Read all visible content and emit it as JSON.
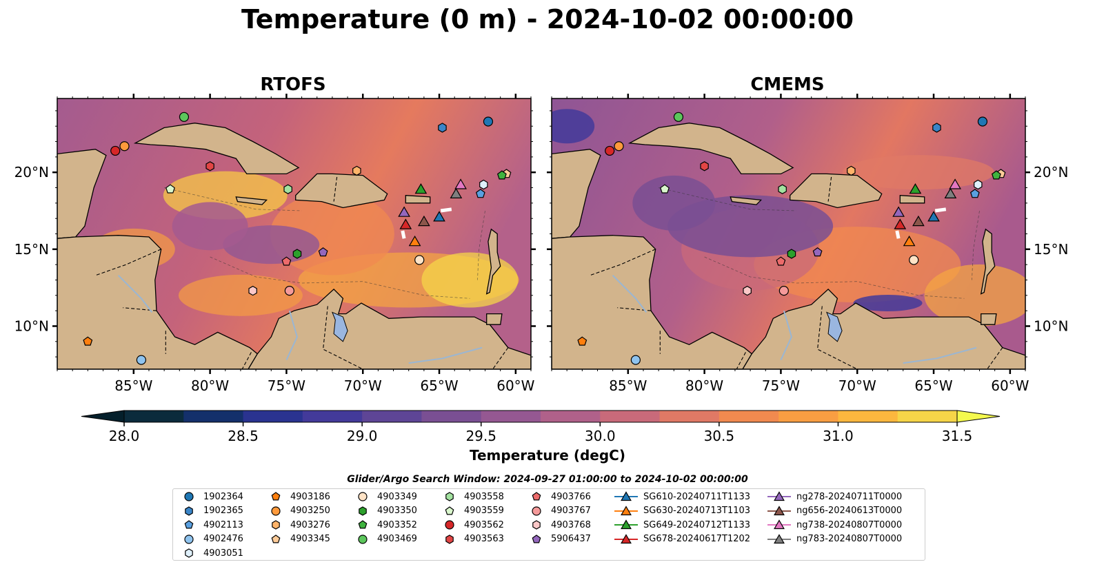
{
  "title": "Temperature (0 m) - 2024-10-02 00:00:00",
  "panels": [
    {
      "title": "RTOFS"
    },
    {
      "title": "CMEMS"
    }
  ],
  "lon_ticks": [
    "85°W",
    "80°W",
    "75°W",
    "70°W",
    "65°W",
    "60°W"
  ],
  "lat_ticks": [
    "20°N",
    "15°N",
    "10°N"
  ],
  "colorbar": {
    "label": "Temperature (degC)",
    "ticks": [
      "28.0",
      "28.5",
      "29.0",
      "29.5",
      "30.0",
      "30.5",
      "31.0",
      "31.5"
    ],
    "colors": [
      "#0b2b3c",
      "#14306b",
      "#2a3390",
      "#433a9a",
      "#5e4596",
      "#7a4f93",
      "#955892",
      "#b0618a",
      "#c96a7a",
      "#e07965",
      "#f18a4f",
      "#f99e42",
      "#fcb73e",
      "#f6d548"
    ]
  },
  "search_window": "Glider/Argo Search Window: 2024-09-27 01:00:00 to 2024-10-02 00:00:00",
  "legend": [
    {
      "label": "1902364",
      "marker": "circle",
      "color": "#1f77b4"
    },
    {
      "label": "1902365",
      "marker": "hexagon",
      "color": "#3a85c8"
    },
    {
      "label": "4902113",
      "marker": "pentagon",
      "color": "#5aa0e0"
    },
    {
      "label": "4902476",
      "marker": "circle",
      "color": "#8fc3ee"
    },
    {
      "label": "4903051",
      "marker": "hexagon",
      "color": "#dff0fb"
    },
    {
      "label": "4903186",
      "marker": "pentagon",
      "color": "#ff7f0e"
    },
    {
      "label": "4903250",
      "marker": "circle",
      "color": "#ff9a3c"
    },
    {
      "label": "4903276",
      "marker": "hexagon",
      "color": "#ffb46a"
    },
    {
      "label": "4903345",
      "marker": "pentagon",
      "color": "#ffcc99"
    },
    {
      "label": "4903349",
      "marker": "circle",
      "color": "#ffe3c6"
    },
    {
      "label": "4903350",
      "marker": "hexagon",
      "color": "#2ca02c"
    },
    {
      "label": "4903352",
      "marker": "pentagon",
      "color": "#3fb33f"
    },
    {
      "label": "4903469",
      "marker": "circle",
      "color": "#5cc65c"
    },
    {
      "label": "4903558",
      "marker": "hexagon",
      "color": "#a3e2a0"
    },
    {
      "label": "4903559",
      "marker": "pentagon",
      "color": "#daf7cd"
    },
    {
      "label": "4903562",
      "marker": "circle",
      "color": "#d62728"
    },
    {
      "label": "4903563",
      "marker": "hexagon",
      "color": "#e24545"
    },
    {
      "label": "4903766",
      "marker": "pentagon",
      "color": "#ec6b6b"
    },
    {
      "label": "4903767",
      "marker": "circle",
      "color": "#f59a9a"
    },
    {
      "label": "4903768",
      "marker": "hexagon",
      "color": "#fbc8c8"
    },
    {
      "label": "5906437",
      "marker": "pentagon",
      "color": "#9467bd"
    },
    {
      "label": "SG610-20240711T1133",
      "marker": "triangle-line",
      "color": "#1f77b4"
    },
    {
      "label": "SG630-20240713T1103",
      "marker": "triangle-line",
      "color": "#ff7f0e"
    },
    {
      "label": "SG649-20240712T1133",
      "marker": "triangle-line",
      "color": "#2ca02c"
    },
    {
      "label": "SG678-20240617T1202",
      "marker": "triangle-line",
      "color": "#d62728"
    },
    {
      "label": "ng278-20240711T0000",
      "marker": "triangle-line",
      "color": "#9467bd"
    },
    {
      "label": "ng656-20240613T0000",
      "marker": "triangle-line",
      "color": "#8c564b"
    },
    {
      "label": "ng738-20240807T0000",
      "marker": "triangle-line",
      "color": "#e377c2"
    },
    {
      "label": "ng783-20240807T0000",
      "marker": "triangle-line",
      "color": "#7f7f7f"
    }
  ],
  "argo_floats": [
    {
      "id": "1902364",
      "lon": -61.8,
      "lat": 23.3
    },
    {
      "id": "1902365",
      "lon": -64.8,
      "lat": 22.9
    },
    {
      "id": "4902113",
      "lon": -62.3,
      "lat": 18.6
    },
    {
      "id": "4902476",
      "lon": -84.5,
      "lat": 7.8
    },
    {
      "id": "4903051",
      "lon": -62.1,
      "lat": 19.2
    },
    {
      "id": "4903186",
      "lon": -88.0,
      "lat": 9.0
    },
    {
      "id": "4903250",
      "lon": -85.6,
      "lat": 21.7
    },
    {
      "id": "4903276",
      "lon": -70.4,
      "lat": 20.1
    },
    {
      "id": "4903345",
      "lon": -60.6,
      "lat": 19.9
    },
    {
      "id": "4903349",
      "lon": -66.3,
      "lat": 14.3
    },
    {
      "id": "4903350",
      "lon": -74.3,
      "lat": 14.7
    },
    {
      "id": "4903352",
      "lon": -60.9,
      "lat": 19.8
    },
    {
      "id": "4903469",
      "lon": -81.7,
      "lat": 23.6
    },
    {
      "id": "4903558",
      "lon": -74.9,
      "lat": 18.9
    },
    {
      "id": "4903559",
      "lon": -82.6,
      "lat": 18.9
    },
    {
      "id": "4903562",
      "lon": -86.2,
      "lat": 21.4
    },
    {
      "id": "4903563",
      "lon": -80.0,
      "lat": 20.4
    },
    {
      "id": "4903766",
      "lon": -75.0,
      "lat": 14.2
    },
    {
      "id": "4903767",
      "lon": -74.8,
      "lat": 12.3
    },
    {
      "id": "4903768",
      "lon": -77.2,
      "lat": 12.3
    },
    {
      "id": "5906437",
      "lon": -72.6,
      "lat": 14.8
    }
  ],
  "gliders": [
    {
      "id": "SG610-20240711T1133",
      "lon": -65.0,
      "lat": 17.1
    },
    {
      "id": "SG630-20240713T1103",
      "lon": -66.6,
      "lat": 15.5
    },
    {
      "id": "SG649-20240712T1133",
      "lon": -66.2,
      "lat": 18.9
    },
    {
      "id": "SG678-20240617T1202",
      "lon": -67.2,
      "lat": 16.6
    },
    {
      "id": "ng278-20240711T0000",
      "lon": -67.3,
      "lat": 17.4
    },
    {
      "id": "ng656-20240613T0000",
      "lon": -66.0,
      "lat": 16.8
    },
    {
      "id": "ng738-20240807T0000",
      "lon": -63.6,
      "lat": 19.2
    },
    {
      "id": "ng783-20240807T0000",
      "lon": -63.9,
      "lat": 18.6
    }
  ]
}
